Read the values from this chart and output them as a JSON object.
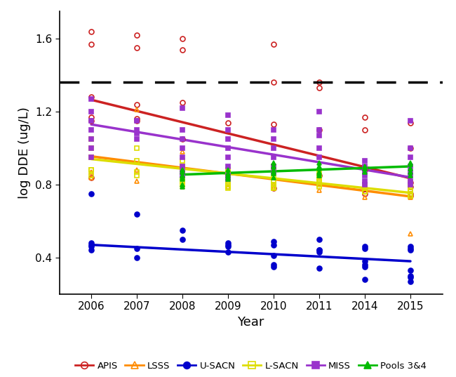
{
  "title": "",
  "xlabel": "Year",
  "ylabel": "log DDE (ug/L)",
  "years": [
    2006,
    2007,
    2008,
    2009,
    2010,
    2011,
    2014,
    2015
  ],
  "x_positions": [
    1,
    2,
    3,
    4,
    5,
    6,
    7,
    8
  ],
  "dashed_line_y": 1.36,
  "series": {
    "APIS": {
      "color": "#CC2222",
      "marker": "o",
      "filled": false,
      "line": [
        1,
        1.265,
        8,
        0.835
      ],
      "dots": {
        "1": [
          1.28,
          1.17,
          1.15,
          0.84,
          1.64,
          1.57
        ],
        "2": [
          1.24,
          1.16,
          1.15,
          1.62,
          1.55
        ],
        "3": [
          1.25,
          1.05,
          1.6,
          1.54
        ],
        "4": [
          1.14
        ],
        "5": [
          1.13,
          0.78,
          1.57,
          1.36
        ],
        "6": [
          1.1,
          0.85,
          1.36,
          1.33
        ],
        "7": [
          1.1,
          0.88,
          0.75,
          1.17
        ],
        "8": [
          1.14,
          1.0,
          0.81,
          0.79,
          0.75,
          0.74
        ]
      }
    },
    "LSSS": {
      "color": "#FF8C00",
      "marker": "^",
      "filled": false,
      "line": [
        1,
        0.955,
        8,
        0.735
      ],
      "dots": {
        "1": [
          0.87,
          0.84
        ],
        "2": [
          1.21,
          0.88,
          0.82
        ],
        "3": [
          0.98,
          0.8,
          0.79
        ],
        "4": [
          0.83,
          0.79
        ],
        "5": [
          0.8,
          0.78
        ],
        "6": [
          0.85,
          0.77
        ],
        "7": [
          0.73
        ],
        "8": [
          0.73,
          0.53
        ]
      }
    },
    "U-SACN": {
      "color": "#0000CC",
      "marker": "o",
      "filled": true,
      "line": [
        1,
        0.47,
        8,
        0.38
      ],
      "dots": {
        "1": [
          0.75,
          0.48,
          0.47,
          0.46,
          0.44
        ],
        "2": [
          0.64,
          0.45,
          0.4
        ],
        "3": [
          0.55,
          0.5
        ],
        "4": [
          0.48,
          0.47,
          0.46,
          0.43
        ],
        "5": [
          0.49,
          0.47,
          0.41,
          0.36,
          0.35
        ],
        "6": [
          0.5,
          0.44,
          0.44,
          0.43,
          0.34
        ],
        "7": [
          0.46,
          0.45,
          0.38,
          0.36,
          0.35,
          0.28
        ],
        "8": [
          0.46,
          0.45,
          0.44,
          0.33,
          0.3,
          0.29,
          0.27
        ]
      }
    },
    "L-SACN": {
      "color": "#DDDD00",
      "marker": "s",
      "filled": false,
      "line": [
        1,
        0.94,
        8,
        0.755
      ],
      "dots": {
        "1": [
          1.05,
          1.0,
          0.95,
          0.88,
          0.88,
          0.85
        ],
        "2": [
          1.0,
          0.93,
          0.87,
          0.85
        ],
        "3": [
          0.93,
          0.9,
          0.87,
          0.83,
          0.82,
          0.8
        ],
        "4": [
          0.88,
          0.87,
          0.85,
          0.83,
          0.82,
          0.8,
          0.79,
          0.78
        ],
        "5": [
          0.9,
          0.88,
          0.84,
          0.82,
          0.8,
          0.8,
          0.79,
          0.78
        ],
        "6": [
          0.86,
          0.84,
          0.83,
          0.82,
          0.8,
          0.79
        ],
        "7": [
          0.8,
          0.8,
          0.78,
          0.76,
          0.76
        ],
        "8": [
          0.81,
          0.8,
          0.77,
          0.76,
          0.75,
          0.74,
          0.74
        ]
      }
    },
    "MISS": {
      "color": "#9933CC",
      "marker": "s",
      "filled": true,
      "line": [
        1,
        1.13,
        8,
        0.84
      ],
      "dots": {
        "1": [
          1.27,
          1.2,
          1.15,
          1.1,
          1.05,
          1.0,
          0.95
        ],
        "2": [
          1.15,
          1.1,
          1.08,
          1.05
        ],
        "3": [
          1.22,
          1.1,
          1.05,
          1.0,
          0.95,
          0.9,
          0.87,
          0.85
        ],
        "4": [
          1.18,
          1.1,
          1.05,
          1.0,
          0.95,
          0.9,
          0.85,
          0.83
        ],
        "5": [
          1.1,
          1.05,
          1.0,
          0.95,
          0.9,
          0.87
        ],
        "6": [
          1.2,
          1.1,
          1.07,
          1.0,
          0.95
        ],
        "7": [
          0.93,
          0.9,
          0.87,
          0.85,
          0.82,
          0.8
        ],
        "8": [
          1.15,
          1.0,
          0.95,
          0.9,
          0.87,
          0.85,
          0.82,
          0.8
        ]
      }
    },
    "Pools 3&4": {
      "color": "#00BB00",
      "marker": "^",
      "filled": true,
      "line": [
        3,
        0.855,
        8,
        0.9
      ],
      "dots": {
        "3": [
          0.88,
          0.87,
          0.85,
          0.84,
          0.83,
          0.8,
          0.79
        ],
        "4": [
          0.88,
          0.86,
          0.85,
          0.84,
          0.83
        ],
        "5": [
          0.92,
          0.9,
          0.88,
          0.87,
          0.86,
          0.84
        ],
        "6": [
          0.92,
          0.9,
          0.89,
          0.87,
          0.86,
          0.85
        ],
        "7": [
          0.9,
          0.89,
          0.87
        ],
        "8": [
          0.92,
          0.91,
          0.89,
          0.87,
          0.85
        ]
      }
    }
  },
  "ylim": [
    0.2,
    1.75
  ],
  "yticks": [
    0.4,
    0.8,
    1.2,
    1.6
  ],
  "background_color": "#ffffff"
}
